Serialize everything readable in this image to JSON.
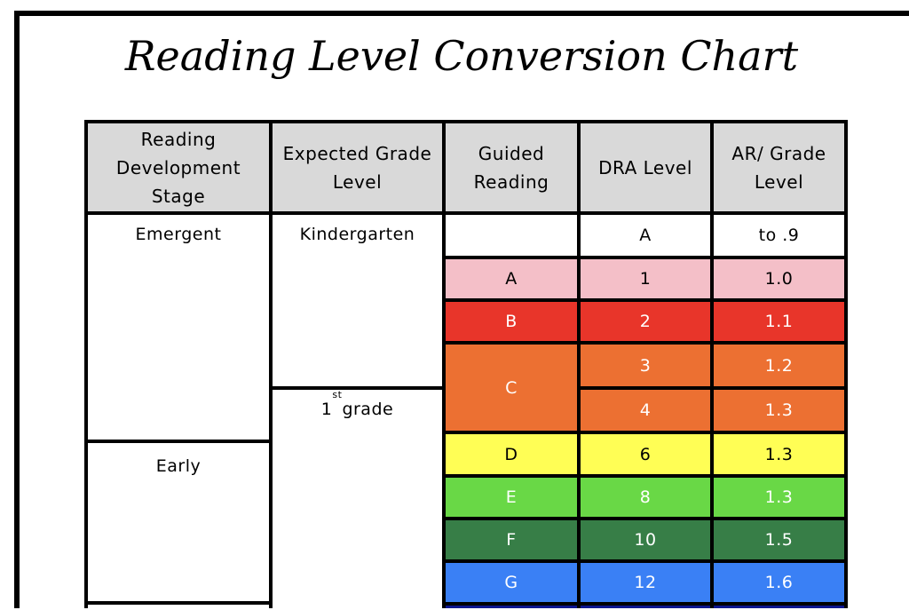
{
  "title": "Reading Level Conversion Chart",
  "headers": [
    "Reading Development Stage",
    "Expected Grade Level",
    "Guided Reading",
    "DRA Level",
    "AR/ Grade Level"
  ],
  "stages": [
    "Emergent",
    "Early",
    ""
  ],
  "grades": [
    {
      "label": "Kindergarten"
    },
    {
      "label": "1",
      "sup": "st",
      "rest": " grade"
    }
  ],
  "colors": {
    "header_bg": "#d9d9d9",
    "border": "#000000"
  },
  "rows": [
    {
      "guided": "",
      "dra": "A",
      "ar": "to .9",
      "color": "#ffffff",
      "text_color": "#000000"
    },
    {
      "guided": "A",
      "dra": "1",
      "ar": "1.0",
      "color": "#f4bfc8",
      "text_color": "#000000"
    },
    {
      "guided": "B",
      "dra": "2",
      "ar": "1.1",
      "color": "#e8352a",
      "text_color": "#ffffff"
    },
    {
      "guided": "C",
      "dra": "3",
      "ar": "1.2",
      "color": "#ec7032",
      "text_color": "#ffffff"
    },
    {
      "guided": "C",
      "dra": "4",
      "ar": "1.3",
      "color": "#ec7032",
      "text_color": "#ffffff"
    },
    {
      "guided": "D",
      "dra": "6",
      "ar": "1.3",
      "color": "#fffe55",
      "text_color": "#000000"
    },
    {
      "guided": "E",
      "dra": "8",
      "ar": "1.3",
      "color": "#69d846",
      "text_color": "#ffffff"
    },
    {
      "guided": "F",
      "dra": "10",
      "ar": "1.5",
      "color": "#377e47",
      "text_color": "#ffffff"
    },
    {
      "guided": "G",
      "dra": "12",
      "ar": "1.6",
      "color": "#3a80f5",
      "text_color": "#ffffff"
    },
    {
      "guided": "",
      "dra": "",
      "ar": "",
      "color": "#0b1590",
      "text_color": "#ffffff"
    }
  ]
}
